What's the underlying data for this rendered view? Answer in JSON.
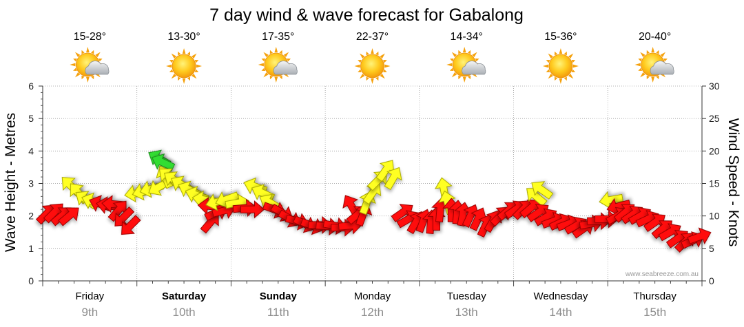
{
  "chart_data": {
    "type": "scatter",
    "title": "7 day wind & wave forecast for Gabalong",
    "ylabel_left": "Wave Height - Metres",
    "ylabel_right": "Wind Speed - Knots",
    "y_left_range": [
      0,
      6
    ],
    "y_right_range": [
      0,
      30
    ],
    "y_left_ticks": [
      "0",
      "1",
      "2",
      "3",
      "4",
      "5",
      "6"
    ],
    "y_right_ticks": [
      "0",
      "5",
      "10",
      "15",
      "20",
      "25",
      "30"
    ],
    "grid": true,
    "watermark": "www.seabreeze.com.au",
    "days": [
      {
        "name": "Friday",
        "date": "9th",
        "temp": "15-28°",
        "weather": "partly-cloudy",
        "bold": false
      },
      {
        "name": "Saturday",
        "date": "10th",
        "temp": "13-30°",
        "weather": "sunny",
        "bold": true
      },
      {
        "name": "Sunday",
        "date": "11th",
        "temp": "17-35°",
        "weather": "partly-cloudy",
        "bold": true
      },
      {
        "name": "Monday",
        "date": "12th",
        "temp": "22-37°",
        "weather": "sunny",
        "bold": false
      },
      {
        "name": "Tuesday",
        "date": "13th",
        "temp": "14-34°",
        "weather": "partly-cloudy",
        "bold": false
      },
      {
        "name": "Wednesday",
        "date": "14th",
        "temp": "15-36°",
        "weather": "sunny",
        "bold": false
      },
      {
        "name": "Thursday",
        "date": "15th",
        "temp": "20-40°",
        "weather": "partly-cloudy",
        "bold": false
      }
    ],
    "wind_arrows": [
      {
        "t": 0.04,
        "knots": 10.3,
        "dir": 225
      },
      {
        "t": 0.12,
        "knots": 10.5,
        "dir": 225
      },
      {
        "t": 0.2,
        "knots": 10.0,
        "dir": 230
      },
      {
        "t": 0.28,
        "knots": 10.0,
        "dir": 230
      },
      {
        "t": 0.3,
        "knots": 14.6,
        "dir": 135
      },
      {
        "t": 0.38,
        "knots": 13.5,
        "dir": 140
      },
      {
        "t": 0.46,
        "knots": 12.5,
        "dir": 125
      },
      {
        "t": 0.54,
        "knots": 12.2,
        "dir": 110
      },
      {
        "t": 0.62,
        "knots": 11.8,
        "dir": 110
      },
      {
        "t": 0.7,
        "knots": 11.6,
        "dir": 100
      },
      {
        "t": 0.76,
        "knots": 11.8,
        "dir": 95
      },
      {
        "t": 0.8,
        "knots": 10.8,
        "dir": 220
      },
      {
        "t": 0.86,
        "knots": 9.8,
        "dir": 45
      },
      {
        "t": 0.93,
        "knots": 8.5,
        "dir": 45
      },
      {
        "t": 1.0,
        "knots": 13.5,
        "dir": 80
      },
      {
        "t": 1.08,
        "knots": 13.8,
        "dir": 75
      },
      {
        "t": 1.16,
        "knots": 14.2,
        "dir": 75
      },
      {
        "t": 1.24,
        "knots": 14.5,
        "dir": 60
      },
      {
        "t": 1.3,
        "knots": 16.0,
        "dir": 155
      },
      {
        "t": 1.24,
        "knots": 18.8,
        "dir": 120
      },
      {
        "t": 1.28,
        "knots": 18.2,
        "dir": 115
      },
      {
        "t": 1.34,
        "knots": 16.0,
        "dir": 130
      },
      {
        "t": 1.4,
        "knots": 15.5,
        "dir": 125
      },
      {
        "t": 1.48,
        "knots": 14.8,
        "dir": 120
      },
      {
        "t": 1.56,
        "knots": 14.0,
        "dir": 115
      },
      {
        "t": 1.64,
        "knots": 13.2,
        "dir": 110
      },
      {
        "t": 1.72,
        "knots": 12.5,
        "dir": 100
      },
      {
        "t": 1.78,
        "knots": 11.5,
        "dir": 95
      },
      {
        "t": 1.78,
        "knots": 9.0,
        "dir": 220
      },
      {
        "t": 1.84,
        "knots": 10.5,
        "dir": 245
      },
      {
        "t": 1.92,
        "knots": 10.8,
        "dir": 255
      },
      {
        "t": 1.86,
        "knots": 12.2,
        "dir": 75
      },
      {
        "t": 1.96,
        "knots": 12.6,
        "dir": 70
      },
      {
        "t": 2.06,
        "knots": 12.0,
        "dir": 260
      },
      {
        "t": 2.14,
        "knots": 11.2,
        "dir": 265
      },
      {
        "t": 2.22,
        "knots": 11.0,
        "dir": 270
      },
      {
        "t": 2.26,
        "knots": 14.5,
        "dir": 110
      },
      {
        "t": 2.34,
        "knots": 13.5,
        "dir": 115
      },
      {
        "t": 2.42,
        "knots": 12.0,
        "dir": 120
      },
      {
        "t": 2.46,
        "knots": 11.0,
        "dir": 290
      },
      {
        "t": 2.54,
        "knots": 10.5,
        "dir": 300
      },
      {
        "t": 2.62,
        "knots": 9.6,
        "dir": 300
      },
      {
        "t": 2.7,
        "knots": 9.2,
        "dir": 285
      },
      {
        "t": 2.78,
        "knots": 8.8,
        "dir": 295
      },
      {
        "t": 2.86,
        "knots": 8.5,
        "dir": 290
      },
      {
        "t": 2.94,
        "knots": 8.6,
        "dir": 270
      },
      {
        "t": 3.02,
        "knots": 8.4,
        "dir": 275
      },
      {
        "t": 3.1,
        "knots": 8.5,
        "dir": 280
      },
      {
        "t": 3.18,
        "knots": 8.2,
        "dir": 270
      },
      {
        "t": 3.26,
        "knots": 8.5,
        "dir": 265
      },
      {
        "t": 3.28,
        "knots": 11.5,
        "dir": 150
      },
      {
        "t": 3.34,
        "knots": 10.2,
        "dir": 230
      },
      {
        "t": 3.4,
        "knots": 10.2,
        "dir": 200
      },
      {
        "t": 3.44,
        "knots": 12.0,
        "dir": 200
      },
      {
        "t": 3.5,
        "knots": 13.5,
        "dir": 215
      },
      {
        "t": 3.56,
        "knots": 15.5,
        "dir": 225
      },
      {
        "t": 3.64,
        "knots": 17.0,
        "dir": 215
      },
      {
        "t": 3.72,
        "knots": 15.8,
        "dir": 210
      },
      {
        "t": 3.82,
        "knots": 10.5,
        "dir": 235
      },
      {
        "t": 3.88,
        "knots": 9.5,
        "dir": 240
      },
      {
        "t": 3.96,
        "knots": 9.0,
        "dir": 210
      },
      {
        "t": 4.04,
        "knots": 9.2,
        "dir": 200
      },
      {
        "t": 4.12,
        "knots": 9.0,
        "dir": 185
      },
      {
        "t": 4.18,
        "knots": 9.5,
        "dir": 180
      },
      {
        "t": 4.22,
        "knots": 10.8,
        "dir": 185
      },
      {
        "t": 4.26,
        "knots": 14.0,
        "dir": 170
      },
      {
        "t": 4.3,
        "knots": 12.0,
        "dir": 165
      },
      {
        "t": 4.34,
        "knots": 10.8,
        "dir": 180
      },
      {
        "t": 4.4,
        "knots": 10.5,
        "dir": 185
      },
      {
        "t": 4.46,
        "knots": 10.2,
        "dir": 190
      },
      {
        "t": 4.54,
        "knots": 10.0,
        "dir": 205
      },
      {
        "t": 4.62,
        "knots": 9.5,
        "dir": 205
      },
      {
        "t": 4.7,
        "knots": 8.5,
        "dir": 205
      },
      {
        "t": 4.78,
        "knots": 9.2,
        "dir": 210
      },
      {
        "t": 4.86,
        "knots": 10.0,
        "dir": 225
      },
      {
        "t": 4.94,
        "knots": 10.8,
        "dir": 230
      },
      {
        "t": 5.02,
        "knots": 11.0,
        "dir": 235
      },
      {
        "t": 5.1,
        "knots": 11.0,
        "dir": 225
      },
      {
        "t": 5.18,
        "knots": 11.2,
        "dir": 230
      },
      {
        "t": 5.24,
        "knots": 13.0,
        "dir": 130
      },
      {
        "t": 5.3,
        "knots": 14.0,
        "dir": 125
      },
      {
        "t": 5.26,
        "knots": 10.5,
        "dir": 235
      },
      {
        "t": 5.34,
        "knots": 9.8,
        "dir": 240
      },
      {
        "t": 5.42,
        "knots": 9.2,
        "dir": 250
      },
      {
        "t": 5.5,
        "knots": 9.0,
        "dir": 245
      },
      {
        "t": 5.58,
        "knots": 8.8,
        "dir": 250
      },
      {
        "t": 5.66,
        "knots": 8.5,
        "dir": 240
      },
      {
        "t": 5.74,
        "knots": 8.0,
        "dir": 235
      },
      {
        "t": 5.82,
        "knots": 8.8,
        "dir": 260
      },
      {
        "t": 5.9,
        "knots": 9.2,
        "dir": 270
      },
      {
        "t": 5.98,
        "knots": 9.5,
        "dir": 270
      },
      {
        "t": 6.04,
        "knots": 12.5,
        "dir": 80
      },
      {
        "t": 6.12,
        "knots": 11.5,
        "dir": 75
      },
      {
        "t": 6.1,
        "knots": 10.0,
        "dir": 240
      },
      {
        "t": 6.18,
        "knots": 10.5,
        "dir": 230
      },
      {
        "t": 6.26,
        "knots": 10.2,
        "dir": 235
      },
      {
        "t": 6.34,
        "knots": 10.0,
        "dir": 240
      },
      {
        "t": 6.42,
        "knots": 9.5,
        "dir": 245
      },
      {
        "t": 6.5,
        "knots": 9.0,
        "dir": 235
      },
      {
        "t": 6.58,
        "knots": 8.0,
        "dir": 230
      },
      {
        "t": 6.66,
        "knots": 7.5,
        "dir": 240
      },
      {
        "t": 6.74,
        "knots": 6.5,
        "dir": 235
      },
      {
        "t": 6.82,
        "knots": 6.0,
        "dir": 225
      },
      {
        "t": 6.9,
        "knots": 6.2,
        "dir": 245
      },
      {
        "t": 6.97,
        "knots": 6.8,
        "dir": 250
      }
    ]
  }
}
